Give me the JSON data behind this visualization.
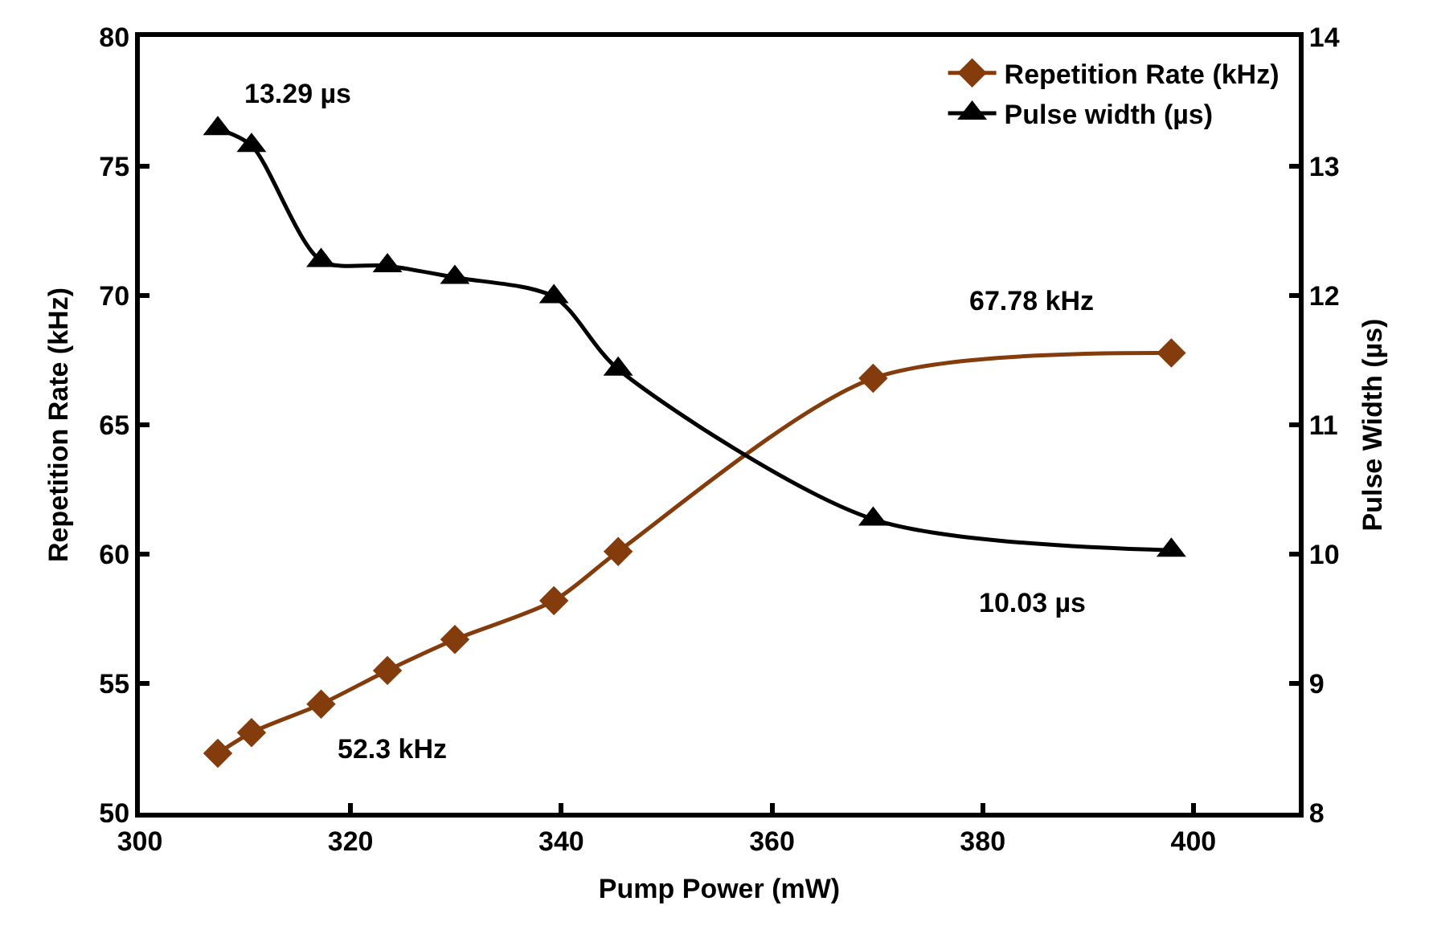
{
  "chart_data": {
    "type": "line",
    "xlabel": "Pump Power (mW)",
    "ylabel": "Repetition Rate (kHz)",
    "y2label": "Pulse Width (µs)",
    "xlim": [
      300,
      410
    ],
    "xticks": [
      300,
      320,
      340,
      360,
      380,
      400
    ],
    "ylim": [
      50,
      80
    ],
    "yticks": [
      50,
      55,
      60,
      65,
      70,
      75,
      80
    ],
    "y2lim": [
      8,
      14
    ],
    "y2ticks": [
      8,
      9,
      10,
      11,
      12,
      13,
      14
    ],
    "legend": "top right",
    "series": [
      {
        "name": "Repetition Rate (kHz)",
        "color": "#843c0c",
        "marker": "diamond",
        "x": [
          307.4,
          310.6,
          317.2,
          323.5,
          329.9,
          339.3,
          345.4,
          369.6,
          397.9
        ],
        "values": [
          52.3,
          53.1,
          54.2,
          55.5,
          56.7,
          58.2,
          60.1,
          66.8,
          67.78
        ]
      },
      {
        "name": "Pulse width (µs)",
        "color": "#000000",
        "marker": "triangle",
        "axis": "y2",
        "x": [
          307.4,
          310.6,
          317.2,
          323.5,
          329.9,
          339.3,
          345.4,
          369.6,
          397.9
        ],
        "values": [
          13.29,
          13.16,
          12.27,
          12.23,
          12.14,
          11.99,
          11.43,
          10.27,
          10.03
        ]
      }
    ],
    "annotations": [
      "13.29 µs",
      "52.3 kHz",
      "67.78 kHz",
      "10.03 µs"
    ]
  }
}
